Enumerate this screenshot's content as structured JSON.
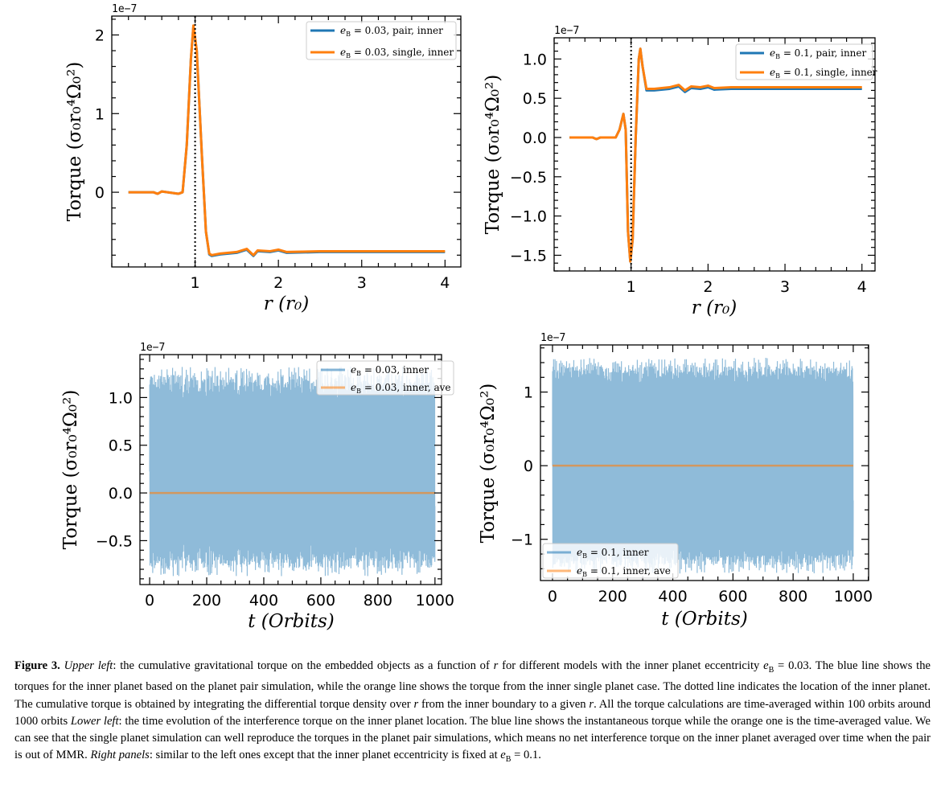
{
  "chart_data": [
    {
      "type": "line",
      "position": "upper-left",
      "offset_text": "1e−7",
      "xlabel": "r (r₀)",
      "ylabel": "Torque (σ₀r₀⁴Ω₀²)",
      "xlim": [
        0.0,
        4.19
      ],
      "ylim": [
        -0.95,
        2.24
      ],
      "xticks": [
        1,
        2,
        3,
        4
      ],
      "yticks": [
        0,
        1,
        2
      ],
      "xminor_step": 0.2,
      "yminor_step": 0.2,
      "vline": 1.0,
      "legend_placement": "top-right",
      "series": [
        {
          "name": "e_B = 0.03, pair, inner",
          "color": "#1f77b4",
          "x": [
            0.2,
            0.5,
            0.55,
            0.6,
            0.8,
            0.85,
            0.9,
            0.95,
            0.98,
            1.02,
            1.08,
            1.13,
            1.17,
            1.2,
            1.3,
            1.5,
            1.62,
            1.7,
            1.75,
            1.9,
            2.0,
            2.1,
            2.5,
            4.0
          ],
          "y": [
            0,
            0,
            -0.02,
            0.01,
            -0.02,
            0,
            0.6,
            1.7,
            2.11,
            1.8,
            0.5,
            -0.5,
            -0.79,
            -0.81,
            -0.79,
            -0.77,
            -0.73,
            -0.81,
            -0.75,
            -0.76,
            -0.74,
            -0.77,
            -0.76,
            -0.76
          ]
        },
        {
          "name": "e_B = 0.03, single, inner",
          "color": "#ff7f0e",
          "x": [
            0.2,
            0.5,
            0.55,
            0.6,
            0.8,
            0.85,
            0.9,
            0.95,
            0.98,
            1.02,
            1.08,
            1.13,
            1.17,
            1.2,
            1.3,
            1.5,
            1.62,
            1.7,
            1.75,
            1.9,
            2.0,
            2.1,
            2.5,
            4.0
          ],
          "y": [
            0,
            0,
            -0.02,
            0.01,
            -0.02,
            0,
            0.6,
            1.7,
            2.12,
            1.8,
            0.5,
            -0.5,
            -0.78,
            -0.8,
            -0.78,
            -0.76,
            -0.72,
            -0.8,
            -0.74,
            -0.75,
            -0.73,
            -0.76,
            -0.75,
            -0.75
          ]
        }
      ]
    },
    {
      "type": "line",
      "position": "upper-right",
      "offset_text": "1e−7",
      "xlabel": "r (r₀)",
      "ylabel": "Torque (σ₀r₀⁴Ω₀²)",
      "xlim": [
        0.0,
        4.17
      ],
      "ylim": [
        -1.7,
        1.27
      ],
      "xticks": [
        1,
        2,
        3,
        4
      ],
      "yticks": [
        "−1.5",
        "−1.0",
        "−0.5",
        "0.0",
        "0.5",
        "1.0"
      ],
      "ytick_values": [
        -1.5,
        -1.0,
        -0.5,
        0.0,
        0.5,
        1.0
      ],
      "xminor_step": 0.2,
      "yminor_step": 0.1,
      "vline": 1.0,
      "legend_placement": "top-right",
      "series": [
        {
          "name": "e_B = 0.1,  pair, inner",
          "color": "#1f77b4",
          "x": [
            0.2,
            0.5,
            0.55,
            0.6,
            0.8,
            0.85,
            0.9,
            0.93,
            0.96,
            0.99,
            1.02,
            1.06,
            1.1,
            1.12,
            1.15,
            1.2,
            1.3,
            1.5,
            1.62,
            1.7,
            1.78,
            1.9,
            2.0,
            2.08,
            2.3,
            2.5,
            4.0
          ],
          "y": [
            0,
            0,
            -0.02,
            0,
            0,
            0.1,
            0.3,
            0.1,
            -1.2,
            -1.58,
            -1.3,
            0,
            1.0,
            1.13,
            0.9,
            0.6,
            0.6,
            0.62,
            0.65,
            0.58,
            0.63,
            0.62,
            0.64,
            0.61,
            0.62,
            0.62,
            0.62
          ]
        },
        {
          "name": "e_B = 0.1,  single, inner",
          "color": "#ff7f0e",
          "x": [
            0.2,
            0.5,
            0.55,
            0.6,
            0.8,
            0.85,
            0.9,
            0.93,
            0.96,
            0.99,
            1.02,
            1.06,
            1.1,
            1.12,
            1.15,
            1.2,
            1.3,
            1.5,
            1.62,
            1.7,
            1.78,
            1.9,
            2.0,
            2.08,
            2.3,
            2.5,
            4.0
          ],
          "y": [
            0,
            0,
            -0.02,
            0,
            0,
            0.1,
            0.3,
            0.1,
            -1.2,
            -1.58,
            -1.3,
            0,
            1.0,
            1.13,
            0.9,
            0.62,
            0.62,
            0.64,
            0.67,
            0.6,
            0.65,
            0.64,
            0.66,
            0.63,
            0.64,
            0.64,
            0.64
          ]
        }
      ]
    },
    {
      "type": "line",
      "position": "lower-left",
      "offset_text": "1e−7",
      "xlabel": "t (Orbits)",
      "ylabel": "Torque (σ₀r₀⁴Ω₀²)",
      "xlim": [
        -34,
        1023
      ],
      "ylim": [
        -0.96,
        1.45
      ],
      "xticks": [
        0,
        200,
        400,
        600,
        800,
        1000
      ],
      "yticks": [
        "−0.5",
        "0.0",
        "0.5",
        "1.0"
      ],
      "ytick_values": [
        -0.5,
        0.0,
        0.5,
        1.0
      ],
      "xminor_step": 50,
      "yminor_step": 0.1,
      "legend_placement": "top-right",
      "series": [
        {
          "name": "e_B = 0.03,  inner",
          "color": "#1f77b4",
          "kind": "oscillating",
          "t_range": [
            0,
            1000
          ],
          "typical_range": [
            -0.7,
            1.15
          ],
          "extreme_range": [
            -0.83,
            1.33
          ]
        },
        {
          "name": "e_B = 0.03,  inner, ave",
          "color": "#ff7f0e",
          "x": [
            0,
            1000
          ],
          "y": [
            0.0,
            0.0
          ]
        }
      ]
    },
    {
      "type": "line",
      "position": "lower-right",
      "offset_text": "1e−7",
      "xlabel": "t (Orbits)",
      "ylabel": "Torque (σ₀r₀⁴Ω₀²)",
      "xlim": [
        -40,
        1051
      ],
      "ylim": [
        -1.56,
        1.64
      ],
      "xticks": [
        0,
        200,
        400,
        600,
        800,
        1000
      ],
      "yticks": [
        "−1",
        "0",
        "1"
      ],
      "ytick_values": [
        -1,
        0,
        1
      ],
      "xminor_step": 50,
      "yminor_step": 0.2,
      "legend_placement": "lower-left",
      "series": [
        {
          "name": "e_B = 0.1,  inner",
          "color": "#1f77b4",
          "kind": "oscillating",
          "t_range": [
            0,
            1000
          ],
          "typical_range": [
            -1.3,
            1.3
          ],
          "extreme_range": [
            -1.45,
            1.47
          ]
        },
        {
          "name": "e_B = 0.1,  inner, ave",
          "color": "#ff7f0e",
          "x": [
            0,
            1000
          ],
          "y": [
            0.0,
            0.0
          ]
        }
      ]
    }
  ],
  "caption": {
    "figure_label": "Figure 3.",
    "segments": [
      {
        "style": "i",
        "text": " Upper left"
      },
      {
        "style": "n",
        "text": ": the cumulative gravitational torque on the embedded objects as a function of "
      },
      {
        "style": "i",
        "text": "r"
      },
      {
        "style": "n",
        "text": " for different models with the inner planet eccentricity "
      },
      {
        "style": "i",
        "text": "e"
      },
      {
        "style": "sub",
        "text": "B"
      },
      {
        "style": "n",
        "text": " = 0.03. The blue line shows the torques for the inner planet based on the planet pair simulation, while the orange line shows the torque from the inner single planet case. The dotted line indicates the location of the inner planet. The cumulative torque is obtained by integrating the differential torque density over "
      },
      {
        "style": "i",
        "text": "r"
      },
      {
        "style": "n",
        "text": " from the inner boundary to a given "
      },
      {
        "style": "i",
        "text": "r"
      },
      {
        "style": "n",
        "text": ". All the torque calculations are time-averaged within 100 orbits around 1000 orbits "
      },
      {
        "style": "i",
        "text": "Lower left"
      },
      {
        "style": "n",
        "text": ": the time evolution of the interference torque on the inner planet location. The blue line shows the instantaneous torque while the orange one is the time-averaged value. We can see that the single planet simulation can well reproduce the torques in the planet pair simulations, which means no net interference torque on the inner planet averaged over time when the pair is out of MMR. "
      },
      {
        "style": "i",
        "text": "Right panels"
      },
      {
        "style": "n",
        "text": ": similar to the left ones except that the inner planet eccentricity is fixed at "
      },
      {
        "style": "i",
        "text": "e"
      },
      {
        "style": "sub",
        "text": "B"
      },
      {
        "style": "n",
        "text": " = 0.1."
      }
    ]
  }
}
